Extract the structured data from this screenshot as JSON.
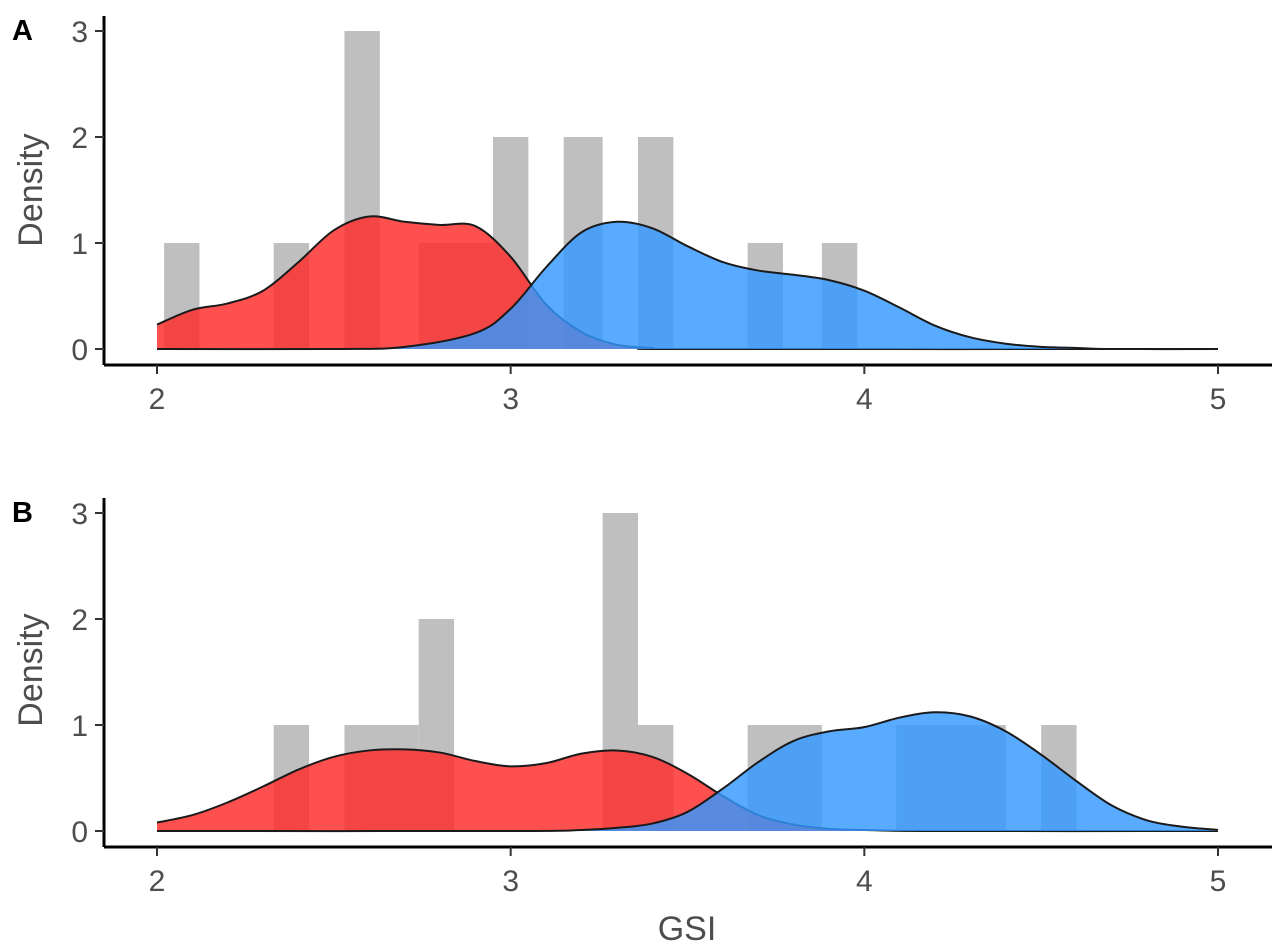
{
  "chart_data": [
    {
      "type": "histogram_density",
      "panel_label": "A",
      "xlabel": "",
      "ylabel": "Density",
      "xlim": [
        2,
        5
      ],
      "ylim": [
        0,
        3
      ],
      "xticks": [
        2,
        3,
        4,
        5
      ],
      "yticks": [
        0,
        1,
        2,
        3
      ],
      "grid": false,
      "histogram": {
        "color": "#bfbfbf",
        "bins": [
          {
            "x0": 2.02,
            "x1": 2.12,
            "y": 1
          },
          {
            "x0": 2.33,
            "x1": 2.43,
            "y": 1
          },
          {
            "x0": 2.53,
            "x1": 2.63,
            "y": 3
          },
          {
            "x0": 2.74,
            "x1": 2.95,
            "y": 1
          },
          {
            "x0": 2.95,
            "x1": 3.05,
            "y": 2
          },
          {
            "x0": 3.15,
            "x1": 3.26,
            "y": 2
          },
          {
            "x0": 3.36,
            "x1": 3.46,
            "y": 2
          },
          {
            "x0": 3.67,
            "x1": 3.77,
            "y": 1
          },
          {
            "x0": 3.88,
            "x1": 3.98,
            "y": 1
          }
        ]
      },
      "series": [
        {
          "color": "#ff2a2a",
          "x": [
            2.0,
            2.1,
            2.2,
            2.3,
            2.4,
            2.5,
            2.6,
            2.7,
            2.8,
            2.9,
            3.0,
            3.1,
            3.2,
            3.3,
            3.4,
            3.5,
            5.0
          ],
          "y": [
            0.23,
            0.37,
            0.43,
            0.55,
            0.82,
            1.12,
            1.25,
            1.2,
            1.17,
            1.16,
            0.87,
            0.42,
            0.16,
            0.04,
            0.01,
            0.0,
            0.0
          ]
        },
        {
          "color": "#3399ff",
          "x": [
            2.0,
            2.5,
            2.7,
            2.9,
            3.0,
            3.1,
            3.2,
            3.3,
            3.4,
            3.5,
            3.6,
            3.7,
            3.8,
            3.9,
            4.0,
            4.1,
            4.2,
            4.3,
            4.4,
            4.5,
            4.6,
            4.7,
            5.0
          ],
          "y": [
            0.0,
            0.0,
            0.02,
            0.15,
            0.38,
            0.77,
            1.1,
            1.2,
            1.14,
            0.97,
            0.82,
            0.74,
            0.7,
            0.65,
            0.55,
            0.39,
            0.22,
            0.11,
            0.05,
            0.02,
            0.01,
            0.0,
            0.0
          ]
        }
      ]
    },
    {
      "type": "histogram_density",
      "panel_label": "B",
      "xlabel": "GSI",
      "ylabel": "Density",
      "xlim": [
        2,
        5
      ],
      "ylim": [
        0,
        3
      ],
      "xticks": [
        2,
        3,
        4,
        5
      ],
      "yticks": [
        0,
        1,
        2,
        3
      ],
      "grid": false,
      "histogram": {
        "color": "#bfbfbf",
        "bins": [
          {
            "x0": 2.33,
            "x1": 2.43,
            "y": 1
          },
          {
            "x0": 2.53,
            "x1": 2.74,
            "y": 1
          },
          {
            "x0": 2.74,
            "x1": 2.84,
            "y": 2
          },
          {
            "x0": 3.26,
            "x1": 3.36,
            "y": 3
          },
          {
            "x0": 3.36,
            "x1": 3.46,
            "y": 1
          },
          {
            "x0": 3.67,
            "x1": 3.88,
            "y": 1
          },
          {
            "x0": 4.09,
            "x1": 4.4,
            "y": 1
          },
          {
            "x0": 4.5,
            "x1": 4.6,
            "y": 1
          }
        ]
      },
      "series": [
        {
          "color": "#ff2a2a",
          "x": [
            2.0,
            2.1,
            2.2,
            2.3,
            2.4,
            2.5,
            2.6,
            2.7,
            2.8,
            2.9,
            3.0,
            3.1,
            3.2,
            3.3,
            3.4,
            3.5,
            3.6,
            3.7,
            3.8,
            3.9,
            4.0,
            4.2,
            5.0
          ],
          "y": [
            0.08,
            0.15,
            0.27,
            0.42,
            0.58,
            0.7,
            0.76,
            0.77,
            0.74,
            0.66,
            0.61,
            0.64,
            0.73,
            0.76,
            0.7,
            0.54,
            0.33,
            0.15,
            0.06,
            0.02,
            0.01,
            0.0,
            0.0
          ]
        },
        {
          "color": "#3399ff",
          "x": [
            2.0,
            3.0,
            3.2,
            3.3,
            3.4,
            3.5,
            3.6,
            3.7,
            3.8,
            3.9,
            4.0,
            4.1,
            4.2,
            4.3,
            4.4,
            4.5,
            4.6,
            4.7,
            4.8,
            4.9,
            5.0
          ],
          "y": [
            0.0,
            0.0,
            0.01,
            0.03,
            0.07,
            0.18,
            0.4,
            0.65,
            0.85,
            0.94,
            0.98,
            1.07,
            1.12,
            1.08,
            0.94,
            0.72,
            0.47,
            0.24,
            0.1,
            0.04,
            0.01
          ]
        }
      ]
    }
  ]
}
